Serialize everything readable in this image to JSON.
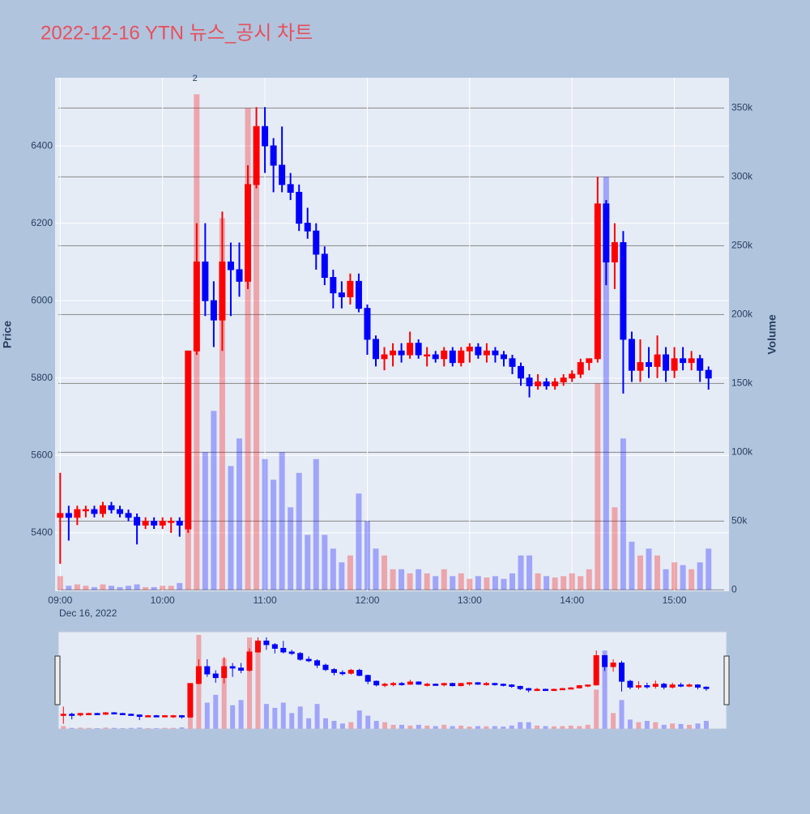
{
  "chart_data": {
    "type": "candlestick",
    "title": "2022-12-16 YTN 뉴스_공시 차트",
    "y_title": "Price",
    "y2_title": "Volume",
    "x_date_label": "Dec 16, 2022",
    "increasing_color": "#ff0000",
    "decreasing_color": "#0000ff",
    "x": [
      "09:00",
      "09:05",
      "09:10",
      "09:15",
      "09:20",
      "09:25",
      "09:30",
      "09:35",
      "09:40",
      "09:45",
      "09:50",
      "09:55",
      "10:00",
      "10:05",
      "10:10",
      "10:15",
      "10:20",
      "10:25",
      "10:30",
      "10:35",
      "10:40",
      "10:45",
      "10:50",
      "10:55",
      "11:00",
      "11:05",
      "11:10",
      "11:15",
      "11:20",
      "11:25",
      "11:30",
      "11:35",
      "11:40",
      "11:45",
      "11:50",
      "11:55",
      "12:00",
      "12:05",
      "12:10",
      "12:15",
      "12:20",
      "12:25",
      "12:30",
      "12:35",
      "12:40",
      "12:45",
      "12:50",
      "12:55",
      "13:00",
      "13:05",
      "13:10",
      "13:15",
      "13:20",
      "13:25",
      "13:30",
      "13:35",
      "13:40",
      "13:45",
      "13:50",
      "13:55",
      "14:00",
      "14:05",
      "14:10",
      "14:15",
      "14:20",
      "14:25",
      "14:30",
      "14:35",
      "14:40",
      "14:45",
      "14:50",
      "14:55",
      "15:00",
      "15:05",
      "15:10",
      "15:15",
      "15:20"
    ],
    "open": [
      5440,
      5450,
      5440,
      5460,
      5460,
      5450,
      5470,
      5460,
      5450,
      5440,
      5420,
      5430,
      5420,
      5430,
      5430,
      5410,
      5870,
      6100,
      6000,
      5950,
      6100,
      6080,
      6050,
      6300,
      6450,
      6400,
      6350,
      6300,
      6280,
      6200,
      6180,
      6120,
      6060,
      6020,
      6010,
      6050,
      5980,
      5900,
      5850,
      5860,
      5870,
      5860,
      5890,
      5860,
      5860,
      5850,
      5870,
      5840,
      5870,
      5880,
      5860,
      5870,
      5860,
      5850,
      5830,
      5800,
      5780,
      5790,
      5780,
      5790,
      5800,
      5810,
      5840,
      5850,
      6250,
      6100,
      6150,
      5900,
      5820,
      5840,
      5830,
      5860,
      5820,
      5850,
      5840,
      5850,
      5820
    ],
    "high": [
      5555,
      5470,
      5470,
      5470,
      5470,
      5480,
      5480,
      5470,
      5460,
      5450,
      5440,
      5440,
      5440,
      5440,
      5440,
      5870,
      6200,
      6200,
      6050,
      6230,
      6150,
      6150,
      6350,
      6500,
      6500,
      6420,
      6450,
      6330,
      6300,
      6240,
      6200,
      6140,
      6080,
      6050,
      6070,
      6070,
      5990,
      5910,
      5880,
      5890,
      5890,
      5920,
      5900,
      5880,
      5870,
      5880,
      5880,
      5880,
      5890,
      5890,
      5890,
      5880,
      5870,
      5860,
      5840,
      5810,
      5810,
      5800,
      5800,
      5810,
      5820,
      5850,
      5850,
      6320,
      6260,
      6200,
      6180,
      5920,
      5900,
      5880,
      5910,
      5880,
      5880,
      5880,
      5870,
      5860,
      5830
    ],
    "low": [
      5320,
      5380,
      5420,
      5440,
      5440,
      5440,
      5450,
      5440,
      5430,
      5370,
      5410,
      5410,
      5410,
      5400,
      5390,
      5400,
      5860,
      5960,
      5880,
      5870,
      5960,
      6010,
      6030,
      6290,
      6330,
      6280,
      6280,
      6260,
      6180,
      6160,
      6080,
      6040,
      5980,
      5980,
      5990,
      5970,
      5860,
      5830,
      5820,
      5830,
      5840,
      5850,
      5850,
      5830,
      5840,
      5830,
      5830,
      5830,
      5840,
      5850,
      5840,
      5840,
      5830,
      5810,
      5780,
      5750,
      5770,
      5770,
      5770,
      5780,
      5790,
      5800,
      5820,
      5840,
      6040,
      6030,
      5760,
      5790,
      5790,
      5800,
      5800,
      5790,
      5800,
      5820,
      5820,
      5790,
      5770
    ],
    "close": [
      5450,
      5440,
      5460,
      5460,
      5450,
      5470,
      5460,
      5450,
      5440,
      5420,
      5430,
      5420,
      5430,
      5430,
      5420,
      5870,
      6100,
      6000,
      5950,
      6100,
      6080,
      6050,
      6300,
      6450,
      6400,
      6350,
      6300,
      6280,
      6200,
      6180,
      6120,
      6060,
      6020,
      6010,
      6050,
      5980,
      5900,
      5850,
      5860,
      5870,
      5860,
      5890,
      5860,
      5860,
      5850,
      5870,
      5840,
      5870,
      5880,
      5860,
      5870,
      5860,
      5850,
      5830,
      5800,
      5780,
      5790,
      5780,
      5790,
      5800,
      5810,
      5840,
      5850,
      6250,
      6100,
      6150,
      5900,
      5820,
      5840,
      5830,
      5860,
      5820,
      5850,
      5840,
      5850,
      5820,
      5800
    ],
    "volume": [
      10000,
      3000,
      4000,
      3000,
      2000,
      4000,
      3000,
      2000,
      3000,
      4000,
      2000,
      2000,
      3000,
      3000,
      5000,
      160000,
      360000,
      100000,
      130000,
      270000,
      90000,
      110000,
      350000,
      300000,
      95000,
      80000,
      100000,
      60000,
      85000,
      40000,
      95000,
      40000,
      30000,
      20000,
      25000,
      70000,
      50000,
      30000,
      25000,
      15000,
      15000,
      12000,
      15000,
      12000,
      10000,
      15000,
      10000,
      12000,
      8000,
      10000,
      9000,
      10000,
      8000,
      12000,
      25000,
      25000,
      12000,
      10000,
      9000,
      10000,
      12000,
      10000,
      15000,
      150000,
      300000,
      60000,
      110000,
      35000,
      25000,
      30000,
      25000,
      15000,
      20000,
      18000,
      15000,
      20000,
      30000
    ],
    "xlim": [
      "08:57",
      "15:32"
    ],
    "xticks": [
      "09:00",
      "10:00",
      "11:00",
      "12:00",
      "13:00",
      "14:00",
      "15:00"
    ],
    "ylim": [
      5249,
      6576
    ],
    "yticks": [
      5400,
      5600,
      5800,
      6000,
      6200,
      6400
    ],
    "y2lim": [
      -1000,
      372000
    ],
    "y2ticks": [
      0,
      {
        "value": 50000,
        "label": "50k"
      },
      {
        "value": 100000,
        "label": "100k"
      },
      {
        "value": 150000,
        "label": "150k"
      },
      {
        "value": 200000,
        "label": "200k"
      },
      {
        "value": 250000,
        "label": "250k"
      },
      {
        "value": 300000,
        "label": "300k"
      },
      {
        "value": 350000,
        "label": "350k"
      }
    ],
    "annotations": [
      {
        "x": "10:19",
        "text": "2"
      }
    ]
  }
}
